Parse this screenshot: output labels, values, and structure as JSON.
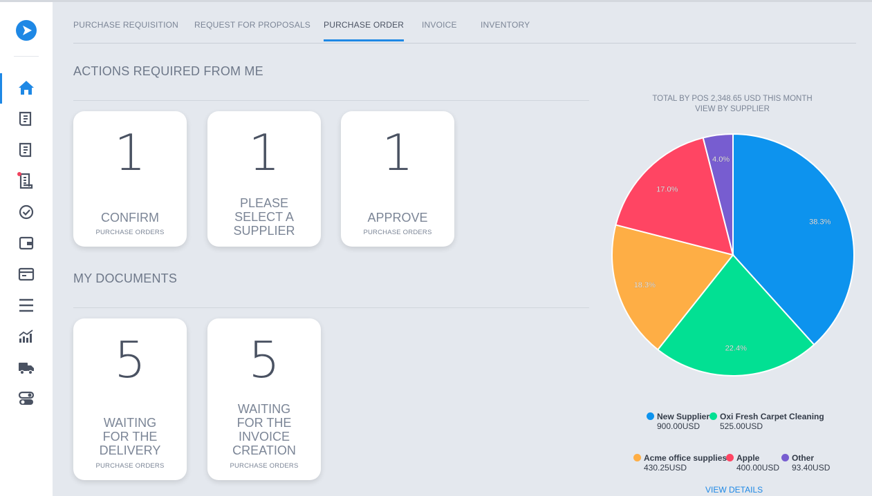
{
  "tabs": [
    {
      "label": "PURCHASE REQUISITION"
    },
    {
      "label": "REQUEST FOR PROPOSALS"
    },
    {
      "label": "PURCHASE ORDER"
    },
    {
      "label": "INVOICE"
    },
    {
      "label": "INVENTORY"
    }
  ],
  "active_tab": "PURCHASE ORDER",
  "sections": {
    "actions_title": "ACTIONS REQUIRED FROM ME",
    "documents_title": "MY DOCUMENTS"
  },
  "action_cards": [
    {
      "count": "1",
      "label": "CONFIRM",
      "sub": "PURCHASE ORDERS"
    },
    {
      "count": "1",
      "label": "PLEASE SELECT A SUPPLIER",
      "sub": ""
    },
    {
      "count": "1",
      "label": "APPROVE",
      "sub": "PURCHASE ORDERS"
    }
  ],
  "document_cards": [
    {
      "count": "5",
      "label": "WAITING FOR THE DELIVERY",
      "sub": "PURCHASE ORDERS"
    },
    {
      "count": "5",
      "label": "WAITING FOR THE INVOICE CREATION",
      "sub": "PURCHASE ORDERS"
    }
  ],
  "chart_header": {
    "line1": "TOTAL BY POS 2,348.65 USD THIS MONTH",
    "line2": "VIEW BY SUPPLIER"
  },
  "chart_data": {
    "type": "pie",
    "title": "TOTAL BY POS 2,348.65 USD THIS MONTH",
    "subtitle": "VIEW BY SUPPLIER",
    "slices": [
      {
        "name": "New Supplier",
        "value": 900.0,
        "percent": 38.3,
        "label": "38.3%",
        "amount": "900.00USD",
        "color": "#0d93ee"
      },
      {
        "name": "Oxi Fresh Carpet Cleaning",
        "value": 525.0,
        "percent": 22.4,
        "label": "22.4%",
        "amount": "525.00USD",
        "color": "#02e093"
      },
      {
        "name": "Acme office supplies",
        "value": 430.25,
        "percent": 18.3,
        "label": "18.3%",
        "amount": "430.25USD",
        "color": "#feae45"
      },
      {
        "name": "Apple",
        "value": 400.0,
        "percent": 17.0,
        "label": "17.0%",
        "amount": "400.00USD",
        "color": "#ff4563"
      },
      {
        "name": "Other",
        "value": 93.4,
        "percent": 4.0,
        "label": "4.0%",
        "amount": "93.40USD",
        "color": "#775dd0"
      }
    ],
    "legend_placement": "bottom"
  },
  "view_details_label": "VIEW DETAILS",
  "sidebar": {
    "icons": [
      "home-icon",
      "document-icon",
      "document-icon",
      "receipt-icon",
      "check-circle-icon",
      "wallet-icon",
      "card-icon",
      "menu-icon",
      "analytics-icon",
      "truck-icon",
      "toggle-icon"
    ]
  },
  "colors": {
    "accent": "#1e88e5",
    "notification": "#f0425d"
  }
}
